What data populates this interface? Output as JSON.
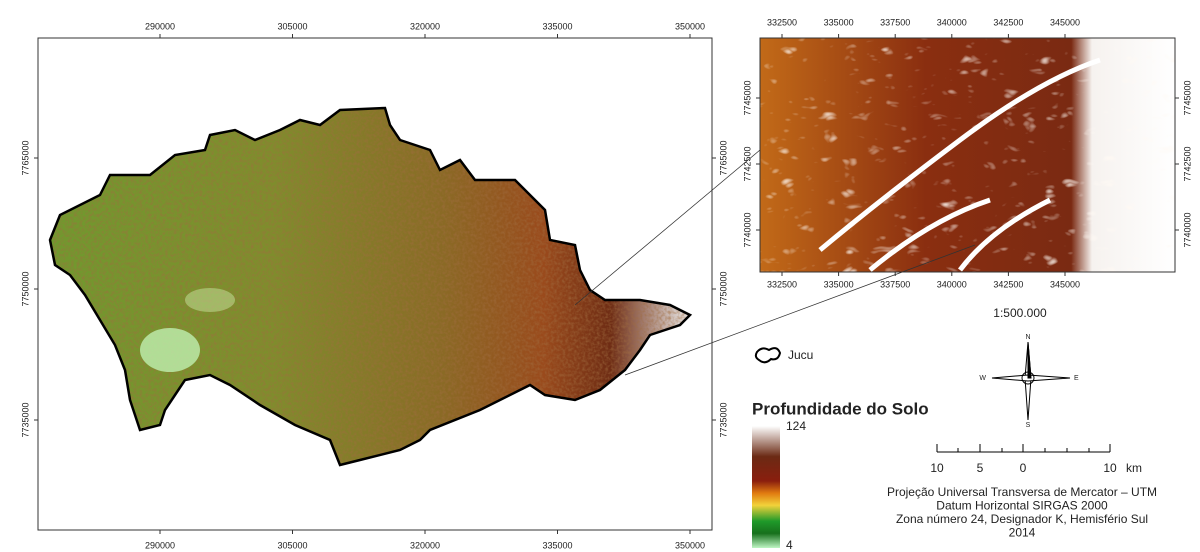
{
  "main_map": {
    "xticks": [
      290000,
      305000,
      320000,
      335000,
      350000
    ],
    "yticks": [
      7735000,
      7750000,
      7765000
    ]
  },
  "inset_map": {
    "xticks": [
      332500,
      335000,
      337500,
      340000,
      342500,
      345000
    ],
    "yticks": [
      7740000,
      7742500,
      7745000
    ]
  },
  "boundary_legend": "Jucu",
  "legend": {
    "title": "Profundidade do Solo",
    "max": 124,
    "min": 4
  },
  "scale_text": "1:500.000",
  "compass": {
    "n": "N",
    "s": "S",
    "w": "W",
    "e": "E"
  },
  "scale_bar": {
    "labels": [
      10,
      5,
      0,
      10
    ],
    "unit": "km"
  },
  "projection": [
    "Projeção Universal Transversa de Mercator – UTM",
    "Datum Horizontal SIRGAS 2000",
    "Zona número 24, Designador K, Hemisfério Sul",
    "2014"
  ]
}
